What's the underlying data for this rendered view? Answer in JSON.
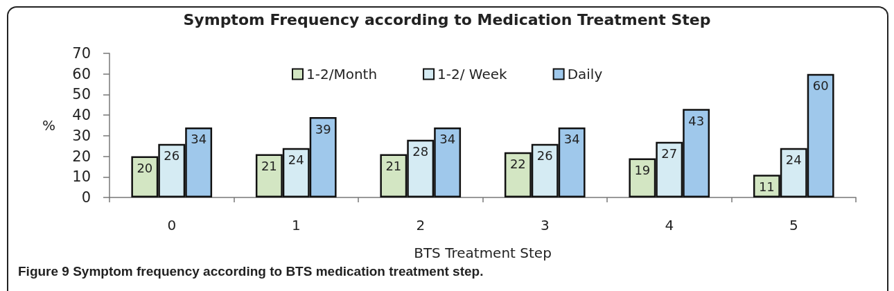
{
  "chart_data": {
    "type": "bar",
    "title": "Symptom Frequency according to Medication Treatment Step",
    "xlabel": "BTS Treatment Step",
    "ylabel": "%",
    "categories": [
      "0",
      "1",
      "2",
      "3",
      "4",
      "5"
    ],
    "series": [
      {
        "name": "1-2/Month",
        "color": "#d3e6c3",
        "values": [
          20,
          21,
          21,
          22,
          19,
          11
        ]
      },
      {
        "name": "1-2/ Week",
        "color": "#d5ebf3",
        "values": [
          26,
          24,
          28,
          26,
          27,
          24
        ]
      },
      {
        "name": "Daily",
        "color": "#9fc8eb",
        "values": [
          34,
          39,
          34,
          34,
          43,
          60
        ]
      }
    ],
    "ylim": [
      0,
      70
    ],
    "yticks": [
      0,
      10,
      20,
      30,
      40,
      50,
      60,
      70
    ],
    "grid": false,
    "legend": "top",
    "data_labels": true,
    "annotations": [
      "Figure 9 Symptom frequency according to BTS medication treatment step."
    ]
  }
}
